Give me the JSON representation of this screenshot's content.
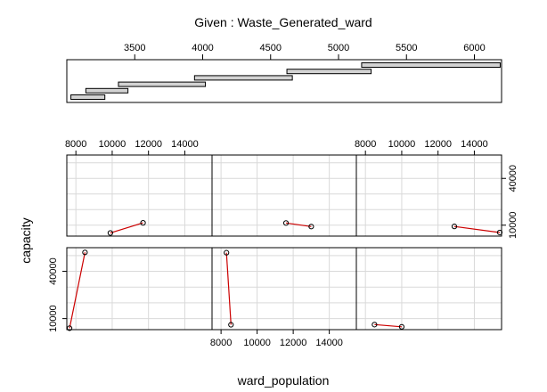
{
  "chart_data": {
    "type": "coplot",
    "title": "Given : Waste_Generated_ward",
    "xlabel": "ward_population",
    "ylabel": "capacity",
    "given": {
      "ticks": [
        3500,
        4000,
        4500,
        5000,
        5500,
        6000
      ],
      "range": [
        3000,
        6200
      ],
      "intervals": [
        [
          3030,
          3280
        ],
        [
          3140,
          3450
        ],
        [
          3380,
          4020
        ],
        [
          3940,
          4660
        ],
        [
          4620,
          5240
        ],
        [
          5170,
          6190
        ]
      ]
    },
    "x_ticks": [
      8000,
      10000,
      12000,
      14000
    ],
    "xlim": [
      7500,
      15500
    ],
    "y_ticks": [
      10000,
      40000
    ],
    "ylim": [
      3000,
      55000
    ],
    "line_color": "#cc0000",
    "point_color": "#000000",
    "grid": true,
    "panels": [
      {
        "x": [
          7650,
          8500
        ],
        "y": [
          3900,
          52000
        ]
      },
      {
        "x": [
          8300,
          8550
        ],
        "y": [
          51800,
          6100
        ]
      },
      {
        "x": [
          8500,
          10000
        ],
        "y": [
          6200,
          4800
        ]
      },
      {
        "x": [
          9900,
          11700
        ],
        "y": [
          5000,
          11500
        ]
      },
      {
        "x": [
          11600,
          13000
        ],
        "y": [
          11400,
          9100
        ]
      },
      {
        "x": [
          12900,
          15400
        ],
        "y": [
          9200,
          5300
        ]
      }
    ]
  }
}
